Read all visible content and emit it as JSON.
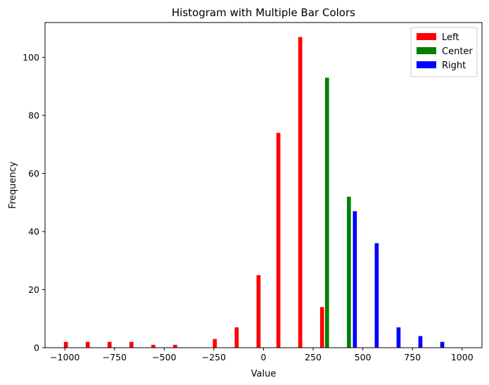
{
  "chart_data": {
    "type": "bar",
    "title": "Histogram with Multiple Bar Colors",
    "xlabel": "Value",
    "ylabel": "Frequency",
    "xlim": [
      -1100,
      1100
    ],
    "ylim": [
      0,
      112
    ],
    "xticks": [
      -1000,
      -750,
      -500,
      -250,
      0,
      250,
      500,
      750,
      1000
    ],
    "xtick_labels": [
      "−1000",
      "−750",
      "−500",
      "−250",
      "0",
      "250",
      "500",
      "750",
      "1000"
    ],
    "yticks": [
      0,
      20,
      40,
      60,
      80,
      100
    ],
    "ytick_labels": [
      "0",
      "20",
      "40",
      "60",
      "80",
      "100"
    ],
    "bar_width": 20,
    "grid": false,
    "legend_position": "top-right",
    "series": [
      {
        "name": "Left",
        "color": "#ff0000",
        "x": [
          -995,
          -885,
          -775,
          -665,
          -555,
          -445,
          -245,
          -135,
          -25,
          75,
          185,
          295
        ],
        "values": [
          2,
          2,
          2,
          2,
          1,
          1,
          3,
          7,
          25,
          74,
          107,
          14
        ]
      },
      {
        "name": "Center",
        "color": "#008000",
        "x": [
          320,
          430
        ],
        "values": [
          93,
          52
        ]
      },
      {
        "name": "Right",
        "color": "#0000ff",
        "x": [
          460,
          570,
          680,
          790,
          900
        ],
        "values": [
          47,
          36,
          7,
          4,
          2
        ]
      }
    ]
  }
}
